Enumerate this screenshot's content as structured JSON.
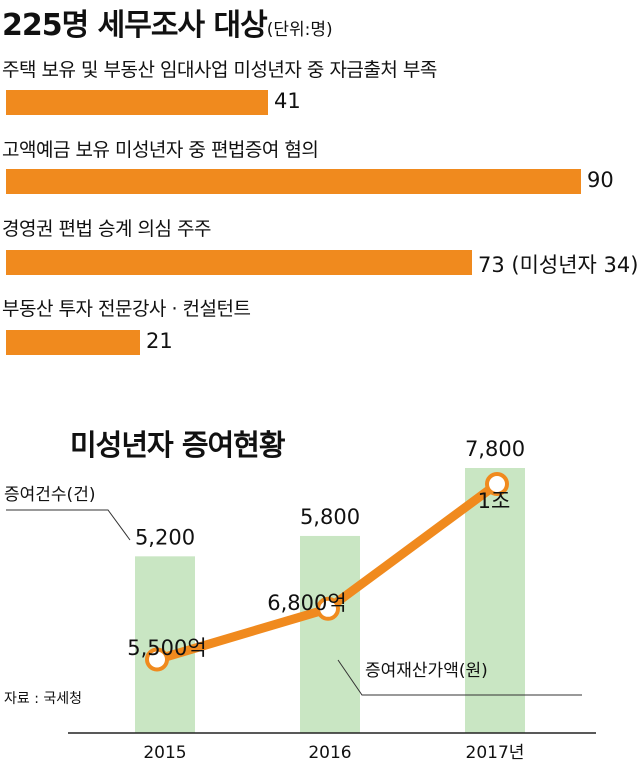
{
  "top_chart": {
    "title": "225명 세무조사 대상",
    "unit": "(단위:명)",
    "bars": [
      {
        "label": "주택 보유 및 부동산 임대사업 미성년자 중 자금출처 부족",
        "value": 41,
        "value_text": "41"
      },
      {
        "label": "고액예금 보유 미성년자 중 편법증여 혐의",
        "value": 90,
        "value_text": "90"
      },
      {
        "label": "경영권 편법 승계 의심 주주",
        "value": 73,
        "value_text": "73 (미성년자 34)"
      },
      {
        "label": "부동산 투자 전문강사 · 컨설턴트",
        "value": 21,
        "value_text": "21"
      }
    ],
    "bar_color": "#f08a1e"
  },
  "bottom_chart": {
    "title": "미성년자 증여현황",
    "bar_series_label": "증여건수(건)",
    "line_series_label": "증여재산가액(원)",
    "source": "자료 : 국세청",
    "bar_color": "#c9e6c3",
    "line_color": "#f08a1e",
    "categories": [
      "2015",
      "2016",
      "2017년"
    ]
  },
  "chart_data": [
    {
      "type": "bar",
      "orientation": "horizontal",
      "title": "225명 세무조사 대상",
      "unit": "명",
      "categories": [
        "주택 보유 및 부동산 임대사업 미성년자 중 자금출처 부족",
        "고액예금 보유 미성년자 중 편법증여 혐의",
        "경영권 편법 승계 의심 주주",
        "부동산 투자 전문강사 · 컨설턴트"
      ],
      "values": [
        41,
        90,
        73,
        21
      ],
      "annotations": [
        "(미성년자 34)"
      ]
    },
    {
      "type": "bar",
      "title": "미성년자 증여현황",
      "categories": [
        "2015",
        "2016",
        "2017년"
      ],
      "series": [
        {
          "name": "증여건수(건)",
          "type": "bar",
          "values": [
            5200,
            5800,
            7800
          ],
          "labels": [
            "5,200",
            "5,800",
            "7,800"
          ]
        },
        {
          "name": "증여재산가액(원)",
          "type": "line",
          "values": [
            550000000000,
            680000000000,
            1000000000000
          ],
          "labels": [
            "5,500억",
            "6,800억",
            "1조"
          ]
        }
      ],
      "source": "자료 : 국세청"
    }
  ]
}
